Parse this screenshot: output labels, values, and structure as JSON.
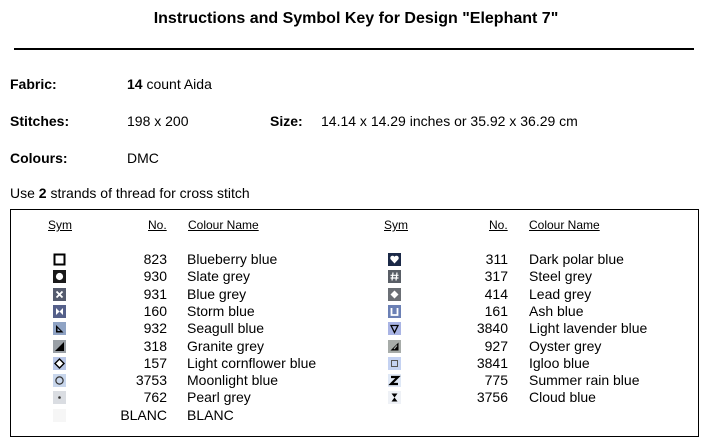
{
  "title": "Instructions and Symbol Key for Design \"Elephant 7\"",
  "fabric": {
    "label": "Fabric:",
    "count": "14",
    "rest": " count Aida"
  },
  "stitches": {
    "label": "Stitches:",
    "value": "198 x 200"
  },
  "size": {
    "label": "Size:",
    "value": "14.14 x 14.29 inches or 35.92 x 36.29 cm"
  },
  "colours": {
    "label": "Colours:",
    "value": "DMC"
  },
  "strands": {
    "pre": "Use ",
    "count": "2",
    "post": " strands of thread for cross stitch"
  },
  "table": {
    "headers": {
      "sym": "Sym",
      "no": "No.",
      "name": "Colour Name"
    },
    "left": [
      {
        "no": "823",
        "name": "Blueberry blue",
        "icon": "hollow-square-icon"
      },
      {
        "no": "930",
        "name": "Slate grey",
        "icon": "circle-square-icon"
      },
      {
        "no": "931",
        "name": "Blue grey",
        "icon": "x-square-icon"
      },
      {
        "no": "160",
        "name": "Storm blue",
        "icon": "bowtie-square-icon"
      },
      {
        "no": "932",
        "name": "Seagull blue",
        "icon": "triangle-square-icon"
      },
      {
        "no": "318",
        "name": "Granite grey",
        "icon": "half-triangle-icon"
      },
      {
        "no": "157",
        "name": "Light cornflower blue",
        "icon": "diamond-outline-icon"
      },
      {
        "no": "3753",
        "name": "Moonlight blue",
        "icon": "ring-icon"
      },
      {
        "no": "762",
        "name": "Pearl grey",
        "icon": "dot-icon"
      },
      {
        "no": "BLANC",
        "name": "BLANC",
        "icon": "blank-icon"
      }
    ],
    "right": [
      {
        "no": "311",
        "name": "Dark polar blue",
        "icon": "heart-icon"
      },
      {
        "no": "317",
        "name": "Steel grey",
        "icon": "hash-icon"
      },
      {
        "no": "414",
        "name": "Lead grey",
        "icon": "diamond-icon"
      },
      {
        "no": "161",
        "name": "Ash blue",
        "icon": "cup-icon"
      },
      {
        "no": "3840",
        "name": "Light lavender blue",
        "icon": "down-triangle-icon"
      },
      {
        "no": "927",
        "name": "Oyster grey",
        "icon": "slash-triangle-icon"
      },
      {
        "no": "3841",
        "name": "Igloo blue",
        "icon": "small-square-icon"
      },
      {
        "no": "775",
        "name": "Summer rain blue",
        "icon": "z-icon"
      },
      {
        "no": "3756",
        "name": "Cloud blue",
        "icon": "hourglass-icon"
      }
    ]
  }
}
